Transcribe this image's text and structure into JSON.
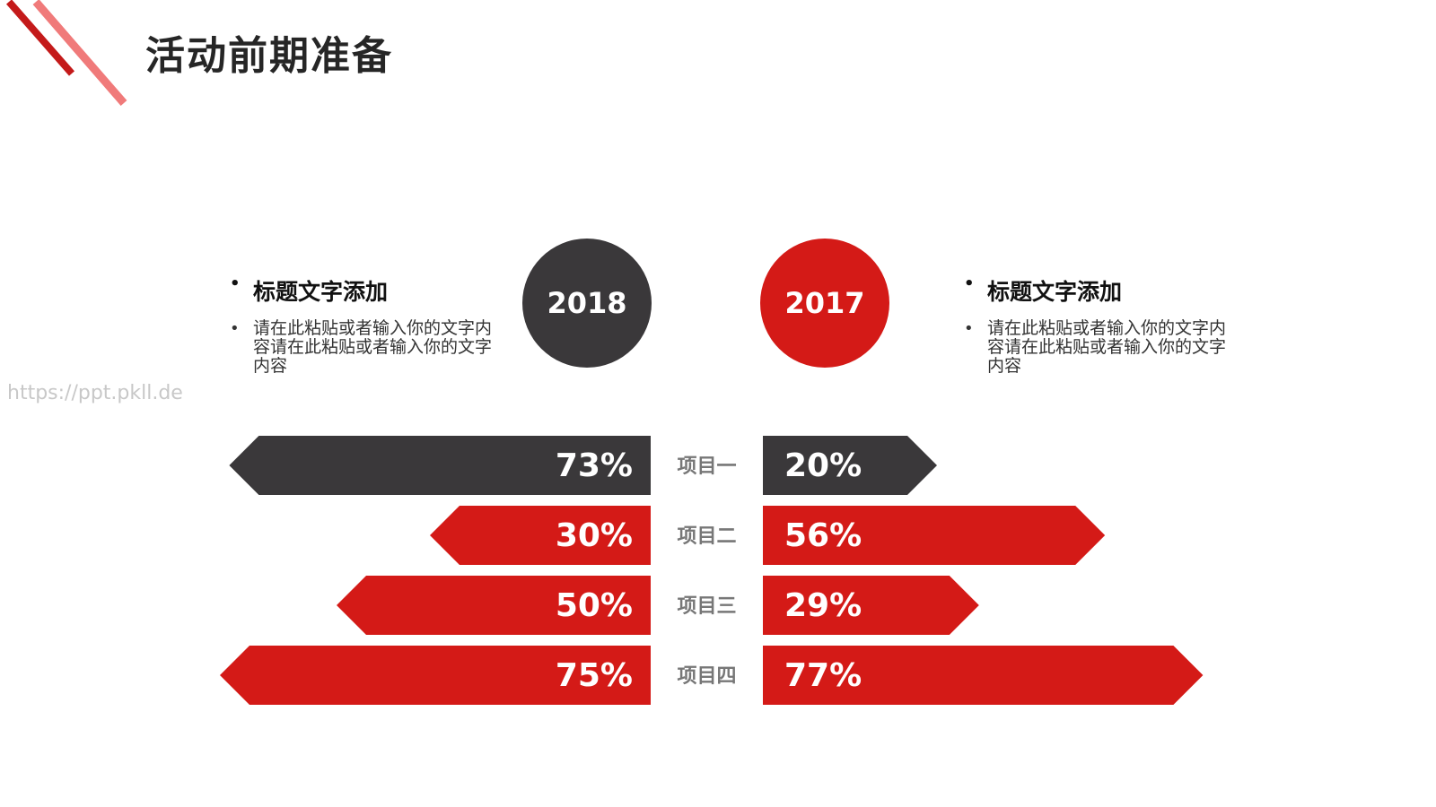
{
  "title": "活动前期准备",
  "watermark": "https://ppt.pkll.de",
  "notes": [
    {
      "heading": "标题文字添加",
      "text": "请在此粘贴或者输入你的文字内容请在此粘贴或者输入你的文字内容"
    },
    {
      "heading": "标题文字添加",
      "text": "请在此粘贴或者输入你的文字内容请在此粘贴或者输入你的文字内容"
    }
  ],
  "chart_data": {
    "type": "butterfly",
    "categories": [
      "项目一",
      "项目二",
      "项目三",
      "项目四"
    ],
    "colors": [
      "#3a383a",
      "#d41a17",
      "#d41a17",
      "#d41a17"
    ],
    "series": [
      {
        "name": "2018",
        "color": "#3a383a",
        "values": [
          73,
          30,
          50,
          75
        ],
        "value_labels": [
          "73%",
          "30%",
          "50%",
          "75%"
        ]
      },
      {
        "name": "2017",
        "color": "#d41a17",
        "values": [
          20,
          56,
          29,
          77
        ],
        "value_labels": [
          "20%",
          "56%",
          "29%",
          "77%"
        ]
      }
    ]
  }
}
